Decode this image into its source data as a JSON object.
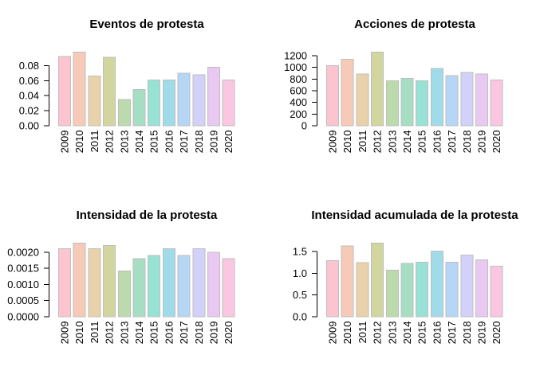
{
  "figure": {
    "background": "#ffffff",
    "layout": "2x2 grid of bar charts"
  },
  "palette": {
    "bar_colors": [
      "#FBC4CF",
      "#F7C9B7",
      "#E9D1AA",
      "#D2D69E",
      "#BBDBAD",
      "#A6DEC3",
      "#98E1D5",
      "#A0DBE9",
      "#B6D6F5",
      "#D1D1F9",
      "#E9C8F2",
      "#FAC6E0"
    ],
    "bar_border": "#BEBEBE",
    "axis_color": "#000000",
    "text_color": "#000000"
  },
  "chart_data": [
    {
      "type": "bar",
      "title": "Eventos de protesta",
      "categories": [
        "2009",
        "2010",
        "2011",
        "2012",
        "2013",
        "2014",
        "2015",
        "2016",
        "2017",
        "2018",
        "2019",
        "2020"
      ],
      "values": [
        0.092,
        0.098,
        0.066,
        0.091,
        0.035,
        0.048,
        0.061,
        0.061,
        0.07,
        0.068,
        0.078,
        0.061
      ],
      "yticks": [
        {
          "value": 0.0,
          "label": "0.00"
        },
        {
          "value": 0.02,
          "label": "0.02"
        },
        {
          "value": 0.04,
          "label": "0.04"
        },
        {
          "value": 0.06,
          "label": "0.06"
        },
        {
          "value": 0.08,
          "label": "0.08"
        }
      ],
      "ylim": [
        0,
        0.098
      ],
      "xlabel": "",
      "ylabel": "",
      "grid": false,
      "legend": null
    },
    {
      "type": "bar",
      "title": "Acciones de protesta",
      "categories": [
        "2009",
        "2010",
        "2011",
        "2012",
        "2013",
        "2014",
        "2015",
        "2016",
        "2017",
        "2018",
        "2019",
        "2020"
      ],
      "values": [
        1030,
        1140,
        885,
        1260,
        770,
        810,
        770,
        980,
        860,
        915,
        885,
        780
      ],
      "yticks": [
        {
          "value": 0,
          "label": "0"
        },
        {
          "value": 200,
          "label": "200"
        },
        {
          "value": 400,
          "label": "400"
        },
        {
          "value": 600,
          "label": "600"
        },
        {
          "value": 800,
          "label": "800"
        },
        {
          "value": 1000,
          "label": "1000"
        },
        {
          "value": 1200,
          "label": "1200"
        }
      ],
      "ylim": [
        0,
        1260
      ],
      "xlabel": "",
      "ylabel": "",
      "grid": false,
      "legend": null
    },
    {
      "type": "bar",
      "title": "Intensidad de la protesta",
      "categories": [
        "2009",
        "2010",
        "2011",
        "2012",
        "2013",
        "2014",
        "2015",
        "2016",
        "2017",
        "2018",
        "2019",
        "2020"
      ],
      "values": [
        0.00211,
        0.00228,
        0.00211,
        0.00221,
        0.00142,
        0.0018,
        0.0019,
        0.00211,
        0.0019,
        0.00211,
        0.002,
        0.0018
      ],
      "yticks": [
        {
          "value": 0.0,
          "label": "0.0000"
        },
        {
          "value": 0.0005,
          "label": "0.0005"
        },
        {
          "value": 0.001,
          "label": "0.0010"
        },
        {
          "value": 0.0015,
          "label": "0.0015"
        },
        {
          "value": 0.002,
          "label": "0.0020"
        }
      ],
      "ylim": [
        0,
        0.00228
      ],
      "xlabel": "",
      "ylabel": "",
      "grid": false,
      "legend": null
    },
    {
      "type": "bar",
      "title": "Intensidad acumulada de la protesta",
      "categories": [
        "2009",
        "2010",
        "2011",
        "2012",
        "2013",
        "2014",
        "2015",
        "2016",
        "2017",
        "2018",
        "2019",
        "2020"
      ],
      "values": [
        1.29,
        1.63,
        1.24,
        1.69,
        1.07,
        1.22,
        1.25,
        1.51,
        1.25,
        1.42,
        1.31,
        1.16
      ],
      "yticks": [
        {
          "value": 0.0,
          "label": "0.0"
        },
        {
          "value": 0.5,
          "label": "0.5"
        },
        {
          "value": 1.0,
          "label": "1.0"
        },
        {
          "value": 1.5,
          "label": "1.5"
        }
      ],
      "ylim": [
        0,
        1.69
      ],
      "xlabel": "",
      "ylabel": "",
      "grid": false,
      "legend": null
    }
  ]
}
